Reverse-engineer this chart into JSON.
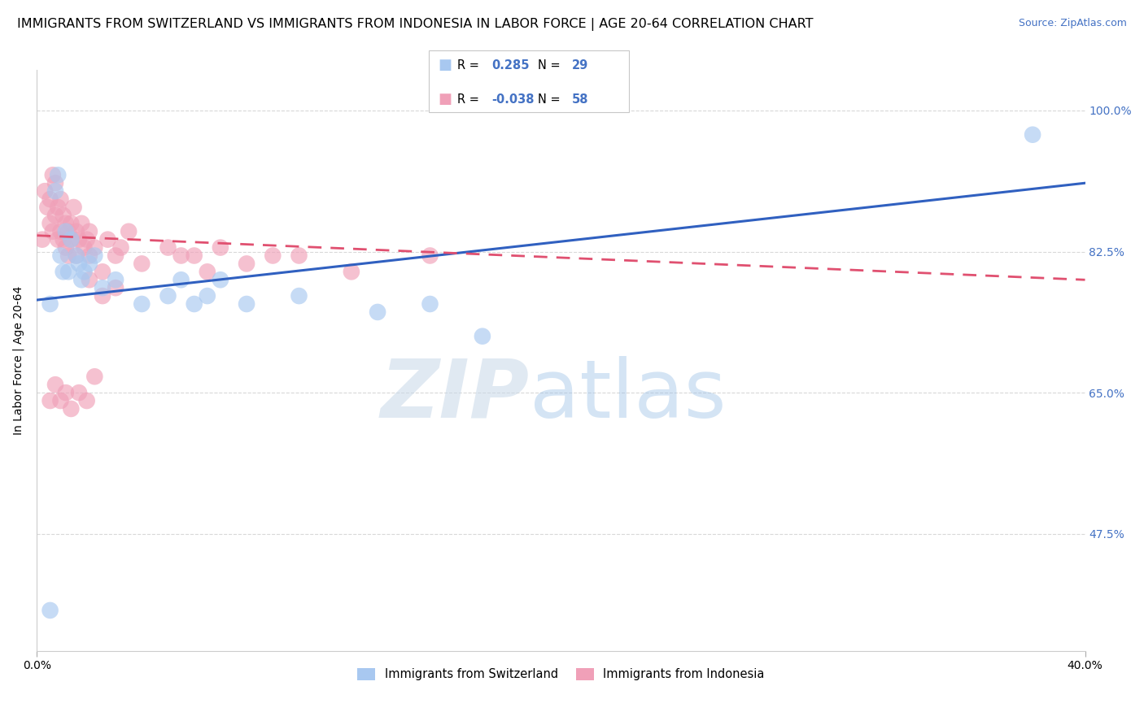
{
  "title": "IMMIGRANTS FROM SWITZERLAND VS IMMIGRANTS FROM INDONESIA IN LABOR FORCE | AGE 20-64 CORRELATION CHART",
  "source": "Source: ZipAtlas.com",
  "ylabel": "In Labor Force | Age 20-64",
  "legend_label_blue": "Immigrants from Switzerland",
  "legend_label_pink": "Immigrants from Indonesia",
  "r_blue": 0.285,
  "n_blue": 29,
  "r_pink": -0.038,
  "n_pink": 58,
  "xlim": [
    0.0,
    0.4
  ],
  "ylim": [
    0.33,
    1.05
  ],
  "blue_color": "#a8c8f0",
  "pink_color": "#f0a0b8",
  "blue_line_color": "#3060c0",
  "pink_line_color": "#e05070",
  "pink_line_dash": [
    6,
    4
  ],
  "watermark_zip": "ZIP",
  "watermark_atlas": "atlas",
  "background_color": "#ffffff",
  "grid_color": "#d8d8d8",
  "title_fontsize": 11.5,
  "source_fontsize": 9,
  "axis_fontsize": 10,
  "tick_fontsize": 10,
  "blue_scatter_x": [
    0.005,
    0.007,
    0.008,
    0.009,
    0.01,
    0.011,
    0.012,
    0.013,
    0.015,
    0.016,
    0.017,
    0.018,
    0.02,
    0.022,
    0.025,
    0.03,
    0.04,
    0.05,
    0.055,
    0.06,
    0.065,
    0.07,
    0.08,
    0.1,
    0.13,
    0.15,
    0.17,
    0.38,
    0.005
  ],
  "blue_scatter_y": [
    0.76,
    0.9,
    0.92,
    0.82,
    0.8,
    0.85,
    0.8,
    0.84,
    0.82,
    0.81,
    0.79,
    0.8,
    0.81,
    0.82,
    0.78,
    0.79,
    0.76,
    0.77,
    0.79,
    0.76,
    0.77,
    0.79,
    0.76,
    0.77,
    0.75,
    0.76,
    0.72,
    0.97,
    0.38
  ],
  "pink_scatter_x": [
    0.002,
    0.003,
    0.004,
    0.005,
    0.005,
    0.006,
    0.006,
    0.007,
    0.007,
    0.008,
    0.008,
    0.009,
    0.009,
    0.01,
    0.01,
    0.011,
    0.011,
    0.012,
    0.012,
    0.013,
    0.013,
    0.014,
    0.015,
    0.015,
    0.016,
    0.017,
    0.018,
    0.019,
    0.02,
    0.02,
    0.022,
    0.025,
    0.027,
    0.03,
    0.032,
    0.035,
    0.04,
    0.05,
    0.055,
    0.06,
    0.065,
    0.07,
    0.08,
    0.09,
    0.1,
    0.12,
    0.15,
    0.02,
    0.025,
    0.03,
    0.005,
    0.007,
    0.009,
    0.011,
    0.013,
    0.016,
    0.019,
    0.022
  ],
  "pink_scatter_y": [
    0.84,
    0.9,
    0.88,
    0.86,
    0.89,
    0.85,
    0.92,
    0.87,
    0.91,
    0.84,
    0.88,
    0.85,
    0.89,
    0.84,
    0.87,
    0.83,
    0.86,
    0.85,
    0.82,
    0.86,
    0.84,
    0.88,
    0.85,
    0.82,
    0.84,
    0.86,
    0.83,
    0.84,
    0.82,
    0.85,
    0.83,
    0.8,
    0.84,
    0.82,
    0.83,
    0.85,
    0.81,
    0.83,
    0.82,
    0.82,
    0.8,
    0.83,
    0.81,
    0.82,
    0.82,
    0.8,
    0.82,
    0.79,
    0.77,
    0.78,
    0.64,
    0.66,
    0.64,
    0.65,
    0.63,
    0.65,
    0.64,
    0.67
  ]
}
